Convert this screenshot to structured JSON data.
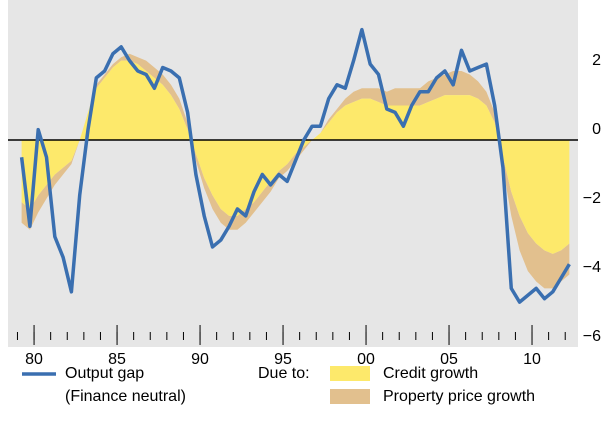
{
  "chart_data": {
    "type": "area-line",
    "x": [
      1979.25,
      1979.75,
      1980.25,
      1980.75,
      1981.25,
      1981.75,
      1982.25,
      1982.75,
      1983.25,
      1983.75,
      1984.25,
      1984.75,
      1985.25,
      1985.75,
      1986.25,
      1986.75,
      1987.25,
      1987.75,
      1988.25,
      1988.75,
      1989.25,
      1989.75,
      1990.25,
      1990.75,
      1991.25,
      1991.75,
      1992.25,
      1992.75,
      1993.25,
      1993.75,
      1994.25,
      1994.75,
      1995.25,
      1995.75,
      1996.25,
      1996.75,
      1997.25,
      1997.75,
      1998.25,
      1998.75,
      1999.25,
      1999.75,
      2000.25,
      2000.75,
      2001.25,
      2001.75,
      2002.25,
      2002.75,
      2003.25,
      2003.75,
      2004.25,
      2004.75,
      2005.25,
      2005.75,
      2006.25,
      2006.75,
      2007.25,
      2007.75,
      2008.25,
      2008.75,
      2009.25,
      2009.75,
      2010.25,
      2010.75,
      2011.25,
      2011.75,
      2012.25
    ],
    "series": [
      {
        "name": "Output gap\n(Finance neutral)",
        "kind": "line",
        "color": "#3a6fb0",
        "values": [
          -0.5,
          -2.5,
          0.3,
          -0.5,
          -2.8,
          -3.4,
          -4.4,
          -1.6,
          0.3,
          1.8,
          2.0,
          2.5,
          2.7,
          2.3,
          2.0,
          1.9,
          1.5,
          2.1,
          2.0,
          1.8,
          0.8,
          -1.0,
          -2.2,
          -3.1,
          -2.9,
          -2.5,
          -2.0,
          -2.2,
          -1.5,
          -1.0,
          -1.3,
          -1.0,
          -1.2,
          -0.6,
          0.0,
          0.4,
          0.4,
          1.2,
          1.6,
          1.5,
          2.3,
          3.2,
          2.2,
          1.9,
          0.9,
          0.8,
          0.4,
          1.0,
          1.4,
          1.4,
          1.8,
          2.0,
          1.6,
          2.6,
          2.0,
          2.1,
          2.2,
          1.0,
          -0.8,
          -4.3,
          -4.7,
          -4.5,
          -4.3,
          -4.6,
          -4.4,
          -4.0,
          -3.6
        ]
      },
      {
        "name": "Credit growth",
        "kind": "area",
        "color": "#fde96b",
        "values": [
          -1.8,
          -2.0,
          -1.6,
          -1.3,
          -1.0,
          -0.8,
          -0.6,
          0.0,
          0.8,
          1.5,
          1.8,
          2.1,
          2.3,
          2.3,
          2.2,
          2.0,
          1.8,
          1.6,
          1.3,
          0.9,
          0.3,
          -0.4,
          -1.1,
          -1.6,
          -2.0,
          -2.2,
          -2.2,
          -2.0,
          -1.8,
          -1.5,
          -1.2,
          -0.9,
          -0.7,
          -0.4,
          -0.2,
          0.0,
          0.2,
          0.5,
          0.8,
          1.0,
          1.1,
          1.2,
          1.2,
          1.1,
          1.0,
          1.0,
          1.0,
          1.0,
          1.0,
          1.1,
          1.2,
          1.3,
          1.3,
          1.3,
          1.3,
          1.2,
          1.0,
          0.5,
          -0.5,
          -1.5,
          -2.2,
          -2.7,
          -3.0,
          -3.2,
          -3.3,
          -3.2,
          -3.0
        ]
      },
      {
        "name": "Property price growth",
        "kind": "area",
        "color": "#e2c08e",
        "values": [
          -0.6,
          -0.6,
          -0.5,
          -0.4,
          -0.3,
          -0.2,
          -0.1,
          0.0,
          0.0,
          0.1,
          0.1,
          0.1,
          0.1,
          0.2,
          0.2,
          0.3,
          0.3,
          0.3,
          0.3,
          0.3,
          0.2,
          -0.2,
          -0.3,
          -0.4,
          -0.4,
          -0.4,
          -0.4,
          -0.4,
          -0.3,
          -0.3,
          -0.3,
          -0.2,
          -0.2,
          -0.2,
          -0.1,
          0.0,
          0.0,
          0.1,
          0.1,
          0.2,
          0.3,
          0.3,
          0.3,
          0.4,
          0.4,
          0.5,
          0.5,
          0.5,
          0.5,
          0.6,
          0.6,
          0.6,
          0.7,
          0.7,
          0.6,
          0.5,
          0.4,
          0.3,
          -0.3,
          -0.7,
          -1.0,
          -1.1,
          -1.1,
          -1.1,
          -1.0,
          -0.9,
          -0.9
        ]
      }
    ],
    "legend_heading": "Due to:",
    "xlim": [
      1978.43,
      2012.77
    ],
    "xticks": [
      {
        "value": 1980,
        "label": "80"
      },
      {
        "value": 1985,
        "label": "85"
      },
      {
        "value": 1990,
        "label": "90"
      },
      {
        "value": 1995,
        "label": "95"
      },
      {
        "value": 2000,
        "label": "00"
      },
      {
        "value": 2005,
        "label": "05"
      },
      {
        "value": 2010,
        "label": "10"
      }
    ],
    "ylim": [
      -6,
      4
    ],
    "yticks": [
      {
        "value": -6,
        "label": "−6"
      },
      {
        "value": -4,
        "label": "−4"
      },
      {
        "value": -2,
        "label": "−2"
      },
      0,
      2
    ],
    "zero_line": true
  }
}
